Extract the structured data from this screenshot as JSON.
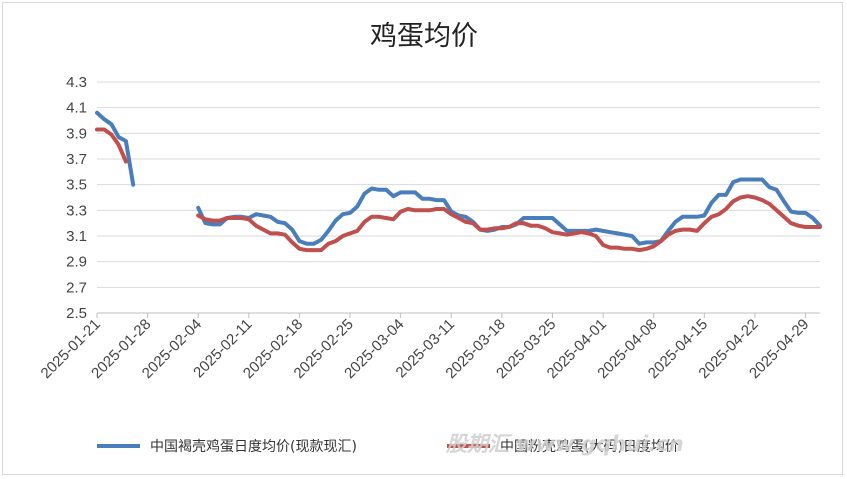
{
  "chart_data": {
    "type": "line",
    "title": "鸡蛋均价",
    "xlabel": "",
    "ylabel": "",
    "ylim": [
      2.5,
      4.3
    ],
    "yticks": [
      "2.5",
      "2.7",
      "2.9",
      "3.1",
      "3.3",
      "3.5",
      "3.7",
      "3.9",
      "4.1",
      "4.3"
    ],
    "xticks": [
      "2025-01-21",
      "2025-01-28",
      "2025-02-04",
      "2025-02-11",
      "2025-02-18",
      "2025-02-25",
      "2025-03-04",
      "2025-03-11",
      "2025-03-18",
      "2025-03-25",
      "2025-04-01",
      "2025-04-08",
      "2025-04-15",
      "2025-04-22",
      "2025-04-29"
    ],
    "grid": "horizontal",
    "legend_position": "bottom",
    "series": [
      {
        "name": "中国褐壳鸡蛋日度均价(现款现汇)",
        "color": "#4A7EBB",
        "points": [
          [
            "2025-01-21",
            4.06
          ],
          [
            "2025-01-22",
            4.01
          ],
          [
            "2025-01-23",
            3.97
          ],
          [
            "2025-01-24",
            3.87
          ],
          [
            "2025-01-25",
            3.84
          ],
          [
            "2025-01-26",
            3.5
          ],
          [
            "2025-02-04",
            3.32
          ],
          [
            "2025-02-05",
            3.2
          ],
          [
            "2025-02-06",
            3.19
          ],
          [
            "2025-02-07",
            3.19
          ],
          [
            "2025-02-08",
            3.24
          ],
          [
            "2025-02-09",
            3.25
          ],
          [
            "2025-02-10",
            3.25
          ],
          [
            "2025-02-11",
            3.24
          ],
          [
            "2025-02-12",
            3.27
          ],
          [
            "2025-02-13",
            3.26
          ],
          [
            "2025-02-14",
            3.25
          ],
          [
            "2025-02-15",
            3.21
          ],
          [
            "2025-02-16",
            3.2
          ],
          [
            "2025-02-17",
            3.15
          ],
          [
            "2025-02-18",
            3.06
          ],
          [
            "2025-02-19",
            3.04
          ],
          [
            "2025-02-20",
            3.04
          ],
          [
            "2025-02-21",
            3.07
          ],
          [
            "2025-02-22",
            3.14
          ],
          [
            "2025-02-23",
            3.22
          ],
          [
            "2025-02-24",
            3.27
          ],
          [
            "2025-02-25",
            3.28
          ],
          [
            "2025-02-26",
            3.33
          ],
          [
            "2025-02-27",
            3.43
          ],
          [
            "2025-02-28",
            3.47
          ],
          [
            "2025-03-01",
            3.46
          ],
          [
            "2025-03-02",
            3.46
          ],
          [
            "2025-03-03",
            3.41
          ],
          [
            "2025-03-04",
            3.44
          ],
          [
            "2025-03-05",
            3.44
          ],
          [
            "2025-03-06",
            3.44
          ],
          [
            "2025-03-07",
            3.39
          ],
          [
            "2025-03-08",
            3.39
          ],
          [
            "2025-03-09",
            3.38
          ],
          [
            "2025-03-10",
            3.38
          ],
          [
            "2025-03-11",
            3.29
          ],
          [
            "2025-03-12",
            3.26
          ],
          [
            "2025-03-13",
            3.25
          ],
          [
            "2025-03-14",
            3.21
          ],
          [
            "2025-03-15",
            3.15
          ],
          [
            "2025-03-16",
            3.14
          ],
          [
            "2025-03-17",
            3.15
          ],
          [
            "2025-03-18",
            3.17
          ],
          [
            "2025-03-19",
            3.17
          ],
          [
            "2025-03-20",
            3.19
          ],
          [
            "2025-03-21",
            3.24
          ],
          [
            "2025-03-22",
            3.24
          ],
          [
            "2025-03-23",
            3.24
          ],
          [
            "2025-03-24",
            3.24
          ],
          [
            "2025-03-25",
            3.24
          ],
          [
            "2025-03-26",
            3.19
          ],
          [
            "2025-03-27",
            3.14
          ],
          [
            "2025-03-28",
            3.14
          ],
          [
            "2025-03-29",
            3.14
          ],
          [
            "2025-03-30",
            3.14
          ],
          [
            "2025-03-31",
            3.15
          ],
          [
            "2025-04-01",
            3.14
          ],
          [
            "2025-04-02",
            3.13
          ],
          [
            "2025-04-03",
            3.12
          ],
          [
            "2025-04-04",
            3.11
          ],
          [
            "2025-04-05",
            3.1
          ],
          [
            "2025-04-06",
            3.04
          ],
          [
            "2025-04-07",
            3.05
          ],
          [
            "2025-04-08",
            3.05
          ],
          [
            "2025-04-09",
            3.06
          ],
          [
            "2025-04-10",
            3.14
          ],
          [
            "2025-04-11",
            3.21
          ],
          [
            "2025-04-12",
            3.25
          ],
          [
            "2025-04-13",
            3.25
          ],
          [
            "2025-04-14",
            3.25
          ],
          [
            "2025-04-15",
            3.26
          ],
          [
            "2025-04-16",
            3.36
          ],
          [
            "2025-04-17",
            3.42
          ],
          [
            "2025-04-18",
            3.42
          ],
          [
            "2025-04-19",
            3.52
          ],
          [
            "2025-04-20",
            3.54
          ],
          [
            "2025-04-21",
            3.54
          ],
          [
            "2025-04-22",
            3.54
          ],
          [
            "2025-04-23",
            3.54
          ],
          [
            "2025-04-24",
            3.48
          ],
          [
            "2025-04-25",
            3.46
          ],
          [
            "2025-04-26",
            3.37
          ],
          [
            "2025-04-27",
            3.29
          ],
          [
            "2025-04-28",
            3.28
          ],
          [
            "2025-04-29",
            3.28
          ],
          [
            "2025-04-30",
            3.24
          ],
          [
            "2025-05-01",
            3.18
          ]
        ]
      },
      {
        "name": "中国粉壳鸡蛋(大码)日度均价",
        "color": "#C0504D",
        "points": [
          [
            "2025-01-21",
            3.93
          ],
          [
            "2025-01-22",
            3.93
          ],
          [
            "2025-01-23",
            3.89
          ],
          [
            "2025-01-24",
            3.81
          ],
          [
            "2025-01-25",
            3.68
          ],
          [
            "2025-02-04",
            3.26
          ],
          [
            "2025-02-05",
            3.23
          ],
          [
            "2025-02-06",
            3.22
          ],
          [
            "2025-02-07",
            3.22
          ],
          [
            "2025-02-08",
            3.24
          ],
          [
            "2025-02-09",
            3.24
          ],
          [
            "2025-02-10",
            3.24
          ],
          [
            "2025-02-11",
            3.23
          ],
          [
            "2025-02-12",
            3.18
          ],
          [
            "2025-02-13",
            3.15
          ],
          [
            "2025-02-14",
            3.12
          ],
          [
            "2025-02-15",
            3.12
          ],
          [
            "2025-02-16",
            3.11
          ],
          [
            "2025-02-17",
            3.05
          ],
          [
            "2025-02-18",
            3.0
          ],
          [
            "2025-02-19",
            2.99
          ],
          [
            "2025-02-20",
            2.99
          ],
          [
            "2025-02-21",
            2.99
          ],
          [
            "2025-02-22",
            3.04
          ],
          [
            "2025-02-23",
            3.06
          ],
          [
            "2025-02-24",
            3.1
          ],
          [
            "2025-02-25",
            3.12
          ],
          [
            "2025-02-26",
            3.14
          ],
          [
            "2025-02-27",
            3.21
          ],
          [
            "2025-02-28",
            3.25
          ],
          [
            "2025-03-01",
            3.25
          ],
          [
            "2025-03-02",
            3.24
          ],
          [
            "2025-03-03",
            3.23
          ],
          [
            "2025-03-04",
            3.29
          ],
          [
            "2025-03-05",
            3.31
          ],
          [
            "2025-03-06",
            3.3
          ],
          [
            "2025-03-07",
            3.3
          ],
          [
            "2025-03-08",
            3.3
          ],
          [
            "2025-03-09",
            3.31
          ],
          [
            "2025-03-10",
            3.31
          ],
          [
            "2025-03-11",
            3.27
          ],
          [
            "2025-03-12",
            3.24
          ],
          [
            "2025-03-13",
            3.21
          ],
          [
            "2025-03-14",
            3.2
          ],
          [
            "2025-03-15",
            3.15
          ],
          [
            "2025-03-16",
            3.15
          ],
          [
            "2025-03-17",
            3.16
          ],
          [
            "2025-03-18",
            3.16
          ],
          [
            "2025-03-19",
            3.17
          ],
          [
            "2025-03-20",
            3.2
          ],
          [
            "2025-03-21",
            3.2
          ],
          [
            "2025-03-22",
            3.18
          ],
          [
            "2025-03-23",
            3.18
          ],
          [
            "2025-03-24",
            3.16
          ],
          [
            "2025-03-25",
            3.13
          ],
          [
            "2025-03-26",
            3.12
          ],
          [
            "2025-03-27",
            3.11
          ],
          [
            "2025-03-28",
            3.12
          ],
          [
            "2025-03-29",
            3.13
          ],
          [
            "2025-03-30",
            3.12
          ],
          [
            "2025-03-31",
            3.1
          ],
          [
            "2025-04-01",
            3.03
          ],
          [
            "2025-04-02",
            3.01
          ],
          [
            "2025-04-03",
            3.01
          ],
          [
            "2025-04-04",
            3.0
          ],
          [
            "2025-04-05",
            3.0
          ],
          [
            "2025-04-06",
            2.99
          ],
          [
            "2025-04-07",
            3.0
          ],
          [
            "2025-04-08",
            3.02
          ],
          [
            "2025-04-09",
            3.06
          ],
          [
            "2025-04-10",
            3.11
          ],
          [
            "2025-04-11",
            3.14
          ],
          [
            "2025-04-12",
            3.15
          ],
          [
            "2025-04-13",
            3.15
          ],
          [
            "2025-04-14",
            3.14
          ],
          [
            "2025-04-15",
            3.2
          ],
          [
            "2025-04-16",
            3.25
          ],
          [
            "2025-04-17",
            3.27
          ],
          [
            "2025-04-18",
            3.31
          ],
          [
            "2025-04-19",
            3.37
          ],
          [
            "2025-04-20",
            3.4
          ],
          [
            "2025-04-21",
            3.41
          ],
          [
            "2025-04-22",
            3.4
          ],
          [
            "2025-04-23",
            3.38
          ],
          [
            "2025-04-24",
            3.35
          ],
          [
            "2025-04-25",
            3.3
          ],
          [
            "2025-04-26",
            3.25
          ],
          [
            "2025-04-27",
            3.2
          ],
          [
            "2025-04-28",
            3.18
          ],
          [
            "2025-04-29",
            3.17
          ],
          [
            "2025-04-30",
            3.17
          ],
          [
            "2025-05-01",
            3.17
          ]
        ]
      }
    ]
  },
  "watermark": "股期汇 www.gqhui.cn"
}
